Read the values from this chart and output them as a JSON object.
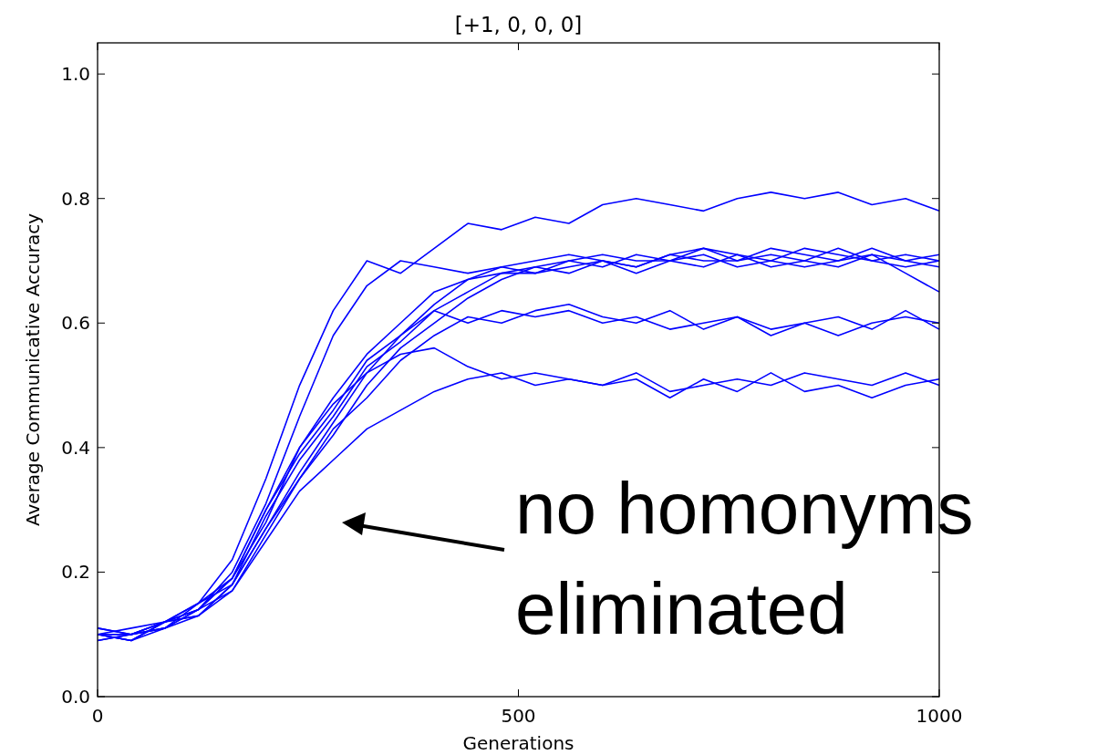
{
  "chart_data": {
    "type": "line",
    "title": "[+1, 0, 0, 0]",
    "xlabel": "Generations",
    "ylabel": "Average Communicative Accuracy",
    "x": [
      0,
      40,
      80,
      120,
      160,
      200,
      240,
      280,
      320,
      360,
      400,
      440,
      480,
      520,
      560,
      600,
      640,
      680,
      720,
      760,
      800,
      840,
      880,
      920,
      960,
      1000
    ],
    "series": [
      {
        "color": "#0000ff",
        "values": [
          0.1,
          0.1,
          0.12,
          0.15,
          0.22,
          0.35,
          0.5,
          0.62,
          0.7,
          0.68,
          0.72,
          0.76,
          0.75,
          0.77,
          0.76,
          0.79,
          0.8,
          0.79,
          0.78,
          0.8,
          0.81,
          0.8,
          0.81,
          0.79,
          0.8,
          0.78
        ]
      },
      {
        "color": "#0000ff",
        "values": [
          0.1,
          0.1,
          0.12,
          0.14,
          0.2,
          0.31,
          0.45,
          0.58,
          0.66,
          0.7,
          0.69,
          0.68,
          0.69,
          0.7,
          0.71,
          0.7,
          0.69,
          0.71,
          0.72,
          0.7,
          0.71,
          0.7,
          0.69,
          0.71,
          0.7,
          0.71
        ]
      },
      {
        "color": "#0000ff",
        "values": [
          0.11,
          0.1,
          0.11,
          0.14,
          0.19,
          0.28,
          0.4,
          0.48,
          0.55,
          0.6,
          0.65,
          0.67,
          0.68,
          0.69,
          0.7,
          0.71,
          0.7,
          0.7,
          0.71,
          0.69,
          0.7,
          0.72,
          0.71,
          0.7,
          0.69,
          0.7
        ]
      },
      {
        "color": "#0000ff",
        "values": [
          0.1,
          0.09,
          0.12,
          0.13,
          0.18,
          0.27,
          0.36,
          0.44,
          0.52,
          0.58,
          0.63,
          0.67,
          0.69,
          0.68,
          0.7,
          0.69,
          0.71,
          0.7,
          0.72,
          0.71,
          0.69,
          0.7,
          0.72,
          0.7,
          0.71,
          0.7
        ]
      },
      {
        "color": "#0000ff",
        "values": [
          0.09,
          0.1,
          0.11,
          0.14,
          0.17,
          0.26,
          0.35,
          0.42,
          0.5,
          0.56,
          0.6,
          0.64,
          0.67,
          0.69,
          0.68,
          0.7,
          0.69,
          0.71,
          0.7,
          0.7,
          0.72,
          0.71,
          0.7,
          0.72,
          0.7,
          0.69
        ]
      },
      {
        "color": "#0000ff",
        "values": [
          0.1,
          0.11,
          0.12,
          0.15,
          0.18,
          0.29,
          0.38,
          0.45,
          0.53,
          0.57,
          0.62,
          0.65,
          0.68,
          0.68,
          0.69,
          0.7,
          0.68,
          0.7,
          0.69,
          0.71,
          0.7,
          0.69,
          0.7,
          0.71,
          0.68,
          0.65
        ]
      },
      {
        "color": "#0000ff",
        "values": [
          0.1,
          0.09,
          0.12,
          0.14,
          0.19,
          0.3,
          0.39,
          0.46,
          0.54,
          0.58,
          0.62,
          0.6,
          0.62,
          0.61,
          0.62,
          0.6,
          0.61,
          0.59,
          0.6,
          0.61,
          0.59,
          0.6,
          0.58,
          0.6,
          0.61,
          0.6
        ]
      },
      {
        "color": "#0000ff",
        "values": [
          0.11,
          0.1,
          0.11,
          0.13,
          0.18,
          0.27,
          0.35,
          0.43,
          0.48,
          0.54,
          0.58,
          0.61,
          0.6,
          0.62,
          0.63,
          0.61,
          0.6,
          0.62,
          0.59,
          0.61,
          0.58,
          0.6,
          0.61,
          0.59,
          0.62,
          0.59
        ]
      },
      {
        "color": "#0000ff",
        "values": [
          0.1,
          0.09,
          0.11,
          0.15,
          0.19,
          0.3,
          0.4,
          0.47,
          0.52,
          0.55,
          0.56,
          0.53,
          0.51,
          0.52,
          0.51,
          0.5,
          0.52,
          0.49,
          0.5,
          0.51,
          0.5,
          0.52,
          0.51,
          0.5,
          0.52,
          0.5
        ]
      },
      {
        "color": "#0000ff",
        "values": [
          0.09,
          0.1,
          0.12,
          0.13,
          0.17,
          0.25,
          0.33,
          0.38,
          0.43,
          0.46,
          0.49,
          0.51,
          0.52,
          0.5,
          0.51,
          0.5,
          0.51,
          0.48,
          0.51,
          0.49,
          0.52,
          0.49,
          0.5,
          0.48,
          0.5,
          0.51
        ]
      }
    ],
    "xlim": [
      0,
      1000
    ],
    "xticks": [
      0,
      500,
      1000
    ],
    "ylim": [
      0,
      1.05
    ],
    "yticks": [
      {
        "value": 0,
        "label": "0.0"
      },
      {
        "value": 0.2,
        "label": "0.2"
      },
      {
        "value": 0.4,
        "label": "0.4"
      },
      {
        "value": 0.6,
        "label": "0.6"
      },
      {
        "value": 0.8,
        "label": "0.8"
      },
      {
        "value": 1.0,
        "label": "1.0"
      }
    ],
    "annotations": [
      "no homonyms\neliminated"
    ],
    "grid": false,
    "marker": "none",
    "line_style": "solid"
  }
}
